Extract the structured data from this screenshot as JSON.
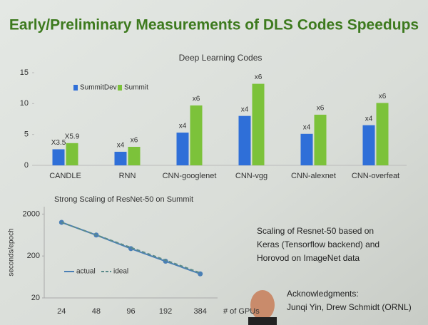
{
  "slide": {
    "title": "Early/Preliminary Measurements of DLS Codes Speedups",
    "note_lines": [
      "Scaling of Resnet-50 based on",
      "Keras (Tensorflow backend) and",
      "Horovod on ImageNet data"
    ],
    "acknowledgments": [
      "Acknowledgments:",
      "Junqi Yin, Drew Schmidt (ORNL)"
    ]
  },
  "chart_data": [
    {
      "type": "bar",
      "title": "Deep Learning Codes",
      "categories": [
        "CANDLE",
        "RNN",
        "CNN-googlenet",
        "CNN-vgg",
        "CNN-alexnet",
        "CNN-overfeat"
      ],
      "series": [
        {
          "name": "SummitDev",
          "color": "#2f6fd8",
          "values": [
            2.6,
            2.2,
            5.3,
            8.0,
            5.1,
            6.5
          ],
          "speedup_labels": [
            "X3.5",
            "x4",
            "x4",
            "x4",
            "x4",
            "x4"
          ]
        },
        {
          "name": "Summit",
          "color": "#7cc23a",
          "values": [
            3.6,
            3.0,
            9.7,
            13.2,
            8.2,
            10.1
          ],
          "speedup_labels": [
            "X5.9",
            "x6",
            "x6",
            "x6",
            "x6",
            "x6"
          ]
        }
      ],
      "ylim": [
        0,
        15
      ],
      "yticks": [
        0,
        5,
        10,
        15
      ],
      "grid": false,
      "legend": "top-left"
    },
    {
      "type": "line",
      "title": "Strong Scaling of ResNet-50 on Summit",
      "categories": [
        "24",
        "48",
        "96",
        "192",
        "384"
      ],
      "xlabel": "# of GPUs",
      "ylabel": "seconds/epoch",
      "series": [
        {
          "name": "actual",
          "color": "#4a7fb5",
          "dashed": false,
          "values": [
            1270,
            632,
            300,
            150,
            75
          ]
        },
        {
          "name": "ideal",
          "color": "#5a8a8a",
          "dashed": true,
          "values": [
            1270,
            635,
            318,
            159,
            79
          ]
        }
      ],
      "ylim": [
        20,
        3000
      ],
      "yticks": [
        20,
        200,
        2000
      ],
      "ylog": true,
      "grid": false,
      "legend": "bottom-left"
    }
  ]
}
